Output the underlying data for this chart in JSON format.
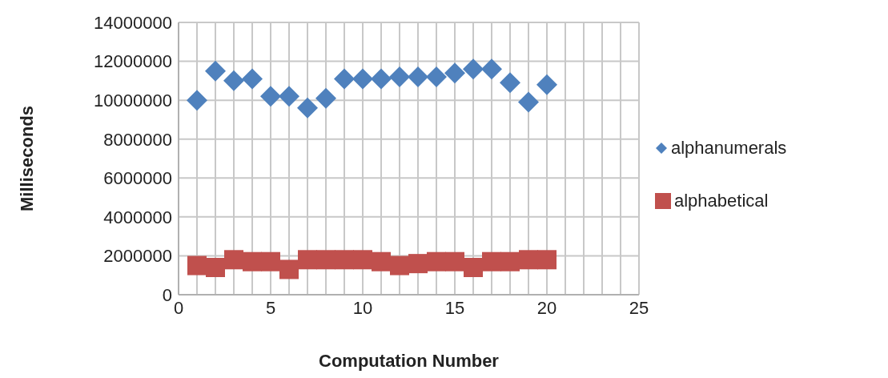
{
  "chart_data": {
    "type": "scatter",
    "xlabel": "Computation Number",
    "ylabel": "Milliseconds",
    "x": [
      1,
      2,
      3,
      4,
      5,
      6,
      7,
      8,
      9,
      10,
      11,
      12,
      13,
      14,
      15,
      16,
      17,
      18,
      19,
      20
    ],
    "series": [
      {
        "name": "alphanumerals",
        "color": "#4f81bd",
        "marker": "diamond",
        "values": [
          10000000,
          11500000,
          11000000,
          11100000,
          10200000,
          10200000,
          9600000,
          10100000,
          11100000,
          11100000,
          11100000,
          11200000,
          11200000,
          11200000,
          11400000,
          11600000,
          11600000,
          10900000,
          9900000,
          10800000
        ]
      },
      {
        "name": "alphabetical",
        "color": "#c0504d",
        "marker": "square",
        "values": [
          1500000,
          1400000,
          1800000,
          1700000,
          1700000,
          1300000,
          1800000,
          1800000,
          1800000,
          1800000,
          1700000,
          1500000,
          1600000,
          1700000,
          1700000,
          1400000,
          1700000,
          1700000,
          1800000,
          1800000
        ]
      }
    ],
    "xlim": [
      0,
      25
    ],
    "xticks": [
      0,
      5,
      10,
      15,
      20,
      25
    ],
    "ylim": [
      0,
      14000000
    ],
    "yticks": [
      0,
      2000000,
      4000000,
      6000000,
      8000000,
      10000000,
      12000000,
      14000000
    ],
    "grid": true,
    "legend": "right"
  }
}
